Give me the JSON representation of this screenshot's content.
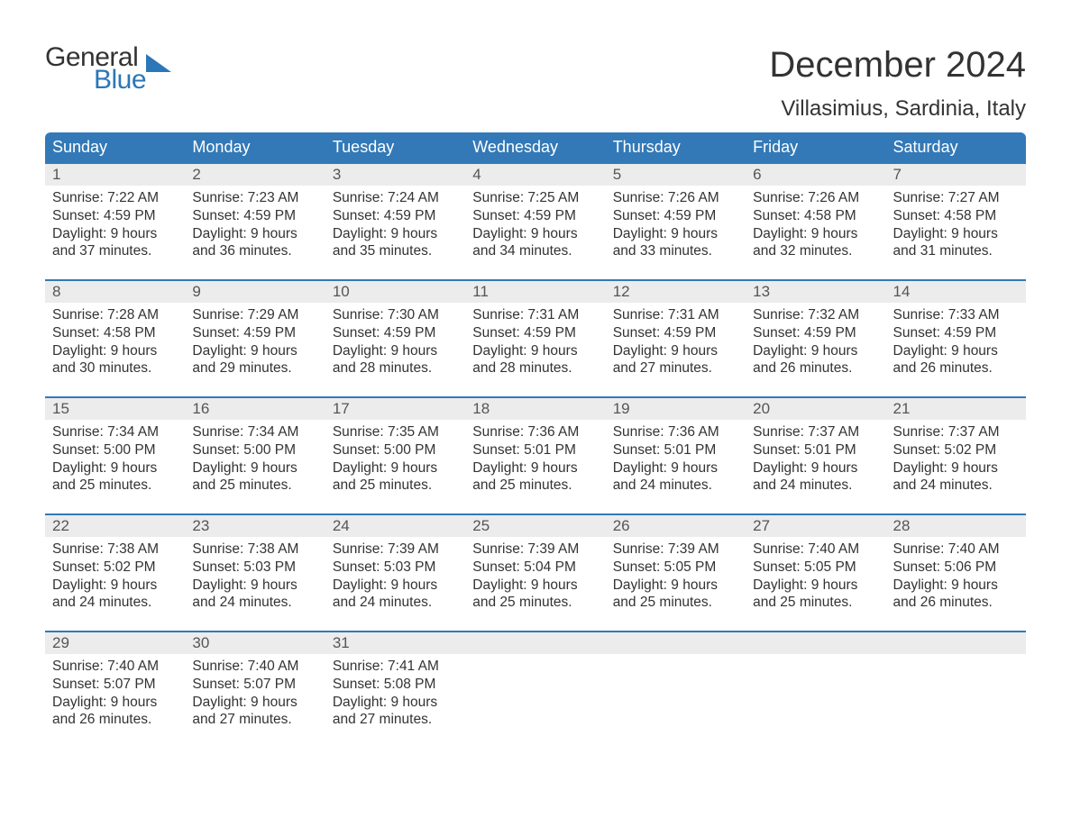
{
  "logo": {
    "line1": "General",
    "line2": "Blue",
    "line1_color": "#333333",
    "line2_color": "#2b77b8",
    "sail_color": "#2b77b8"
  },
  "header": {
    "month_title": "December 2024",
    "location": "Villasimius, Sardinia, Italy"
  },
  "calendar": {
    "type": "table",
    "header_bg": "#3379b7",
    "header_fg": "#ffffff",
    "daynum_bg": "#ececec",
    "rule_color": "#3379b7",
    "text_color": "#333333",
    "background_color": "#ffffff",
    "header_fontsize": 18,
    "daynum_fontsize": 17,
    "body_fontsize": 15.5,
    "columns": [
      "Sunday",
      "Monday",
      "Tuesday",
      "Wednesday",
      "Thursday",
      "Friday",
      "Saturday"
    ],
    "weeks": [
      [
        {
          "day": "1",
          "sunrise": "7:22 AM",
          "sunset": "4:59 PM",
          "daylight_hours": "9",
          "daylight_minutes": "37"
        },
        {
          "day": "2",
          "sunrise": "7:23 AM",
          "sunset": "4:59 PM",
          "daylight_hours": "9",
          "daylight_minutes": "36"
        },
        {
          "day": "3",
          "sunrise": "7:24 AM",
          "sunset": "4:59 PM",
          "daylight_hours": "9",
          "daylight_minutes": "35"
        },
        {
          "day": "4",
          "sunrise": "7:25 AM",
          "sunset": "4:59 PM",
          "daylight_hours": "9",
          "daylight_minutes": "34"
        },
        {
          "day": "5",
          "sunrise": "7:26 AM",
          "sunset": "4:59 PM",
          "daylight_hours": "9",
          "daylight_minutes": "33"
        },
        {
          "day": "6",
          "sunrise": "7:26 AM",
          "sunset": "4:58 PM",
          "daylight_hours": "9",
          "daylight_minutes": "32"
        },
        {
          "day": "7",
          "sunrise": "7:27 AM",
          "sunset": "4:58 PM",
          "daylight_hours": "9",
          "daylight_minutes": "31"
        }
      ],
      [
        {
          "day": "8",
          "sunrise": "7:28 AM",
          "sunset": "4:58 PM",
          "daylight_hours": "9",
          "daylight_minutes": "30"
        },
        {
          "day": "9",
          "sunrise": "7:29 AM",
          "sunset": "4:59 PM",
          "daylight_hours": "9",
          "daylight_minutes": "29"
        },
        {
          "day": "10",
          "sunrise": "7:30 AM",
          "sunset": "4:59 PM",
          "daylight_hours": "9",
          "daylight_minutes": "28"
        },
        {
          "day": "11",
          "sunrise": "7:31 AM",
          "sunset": "4:59 PM",
          "daylight_hours": "9",
          "daylight_minutes": "28"
        },
        {
          "day": "12",
          "sunrise": "7:31 AM",
          "sunset": "4:59 PM",
          "daylight_hours": "9",
          "daylight_minutes": "27"
        },
        {
          "day": "13",
          "sunrise": "7:32 AM",
          "sunset": "4:59 PM",
          "daylight_hours": "9",
          "daylight_minutes": "26"
        },
        {
          "day": "14",
          "sunrise": "7:33 AM",
          "sunset": "4:59 PM",
          "daylight_hours": "9",
          "daylight_minutes": "26"
        }
      ],
      [
        {
          "day": "15",
          "sunrise": "7:34 AM",
          "sunset": "5:00 PM",
          "daylight_hours": "9",
          "daylight_minutes": "25"
        },
        {
          "day": "16",
          "sunrise": "7:34 AM",
          "sunset": "5:00 PM",
          "daylight_hours": "9",
          "daylight_minutes": "25"
        },
        {
          "day": "17",
          "sunrise": "7:35 AM",
          "sunset": "5:00 PM",
          "daylight_hours": "9",
          "daylight_minutes": "25"
        },
        {
          "day": "18",
          "sunrise": "7:36 AM",
          "sunset": "5:01 PM",
          "daylight_hours": "9",
          "daylight_minutes": "25"
        },
        {
          "day": "19",
          "sunrise": "7:36 AM",
          "sunset": "5:01 PM",
          "daylight_hours": "9",
          "daylight_minutes": "24"
        },
        {
          "day": "20",
          "sunrise": "7:37 AM",
          "sunset": "5:01 PM",
          "daylight_hours": "9",
          "daylight_minutes": "24"
        },
        {
          "day": "21",
          "sunrise": "7:37 AM",
          "sunset": "5:02 PM",
          "daylight_hours": "9",
          "daylight_minutes": "24"
        }
      ],
      [
        {
          "day": "22",
          "sunrise": "7:38 AM",
          "sunset": "5:02 PM",
          "daylight_hours": "9",
          "daylight_minutes": "24"
        },
        {
          "day": "23",
          "sunrise": "7:38 AM",
          "sunset": "5:03 PM",
          "daylight_hours": "9",
          "daylight_minutes": "24"
        },
        {
          "day": "24",
          "sunrise": "7:39 AM",
          "sunset": "5:03 PM",
          "daylight_hours": "9",
          "daylight_minutes": "24"
        },
        {
          "day": "25",
          "sunrise": "7:39 AM",
          "sunset": "5:04 PM",
          "daylight_hours": "9",
          "daylight_minutes": "25"
        },
        {
          "day": "26",
          "sunrise": "7:39 AM",
          "sunset": "5:05 PM",
          "daylight_hours": "9",
          "daylight_minutes": "25"
        },
        {
          "day": "27",
          "sunrise": "7:40 AM",
          "sunset": "5:05 PM",
          "daylight_hours": "9",
          "daylight_minutes": "25"
        },
        {
          "day": "28",
          "sunrise": "7:40 AM",
          "sunset": "5:06 PM",
          "daylight_hours": "9",
          "daylight_minutes": "26"
        }
      ],
      [
        {
          "day": "29",
          "sunrise": "7:40 AM",
          "sunset": "5:07 PM",
          "daylight_hours": "9",
          "daylight_minutes": "26"
        },
        {
          "day": "30",
          "sunrise": "7:40 AM",
          "sunset": "5:07 PM",
          "daylight_hours": "9",
          "daylight_minutes": "27"
        },
        {
          "day": "31",
          "sunrise": "7:41 AM",
          "sunset": "5:08 PM",
          "daylight_hours": "9",
          "daylight_minutes": "27"
        },
        null,
        null,
        null,
        null
      ]
    ],
    "labels": {
      "sunrise_prefix": "Sunrise: ",
      "sunset_prefix": "Sunset: ",
      "daylight_prefix": "Daylight: ",
      "hours_word": " hours",
      "and_word": "and ",
      "minutes_word": " minutes."
    }
  }
}
